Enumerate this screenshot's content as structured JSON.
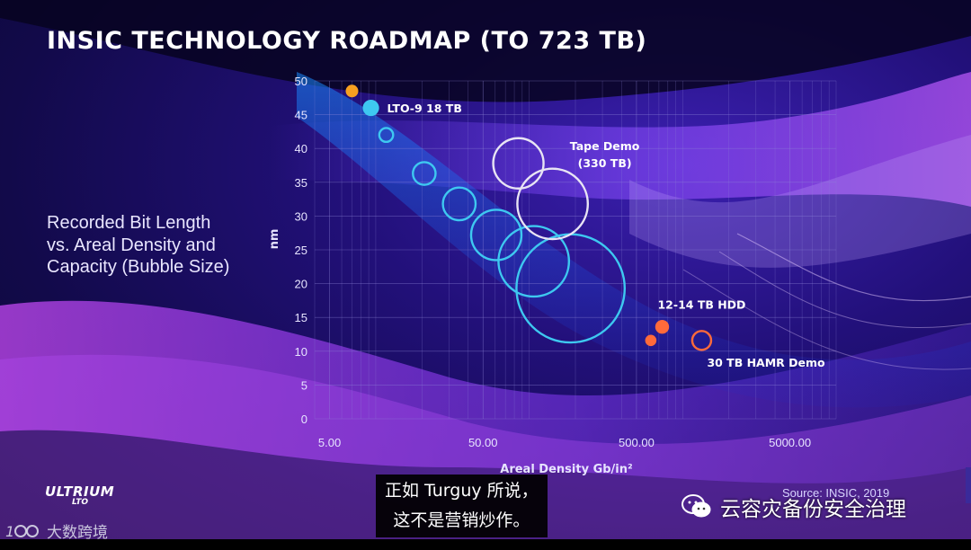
{
  "title": "INSIC TECHNOLOGY ROADMAP (TO 723 TB)",
  "subtitle_lines": [
    "Recorded Bit Length",
    "vs. Areal Density and",
    "Capacity (Bubble Size)"
  ],
  "source": "Source: INSIC, 2019",
  "logo": {
    "top": "ULTRIUM",
    "bottom": "LTO"
  },
  "caption": {
    "line1": "正如 Turguy 所说，",
    "line2": "这不是营销炒作。"
  },
  "wechat": {
    "icon": "wechat-icon",
    "name": "云容灾备份安全治理"
  },
  "watermark": {
    "icon": "100-logo-icon",
    "text": "大数跨境"
  },
  "colors": {
    "lto_bubble": "#3ec8f0",
    "tape_demo": "#e8e4f4",
    "hdd": "#ff6a3a",
    "first_point": "#f7a020",
    "text": "#ffffff"
  },
  "chart_data": {
    "type": "scatter",
    "title": "INSIC TECHNOLOGY ROADMAP (TO 723 TB)",
    "xlabel": "Areal Density Gb/in²",
    "ylabel": "nm",
    "x_scale": "log",
    "xlim": [
      4,
      10000
    ],
    "ylim": [
      0,
      50
    ],
    "x_ticks": [
      "5.00",
      "50.00",
      "500.00",
      "5000.00"
    ],
    "x_tick_values": [
      5,
      50,
      500,
      5000
    ],
    "y_ticks": [
      "0",
      "5",
      "10",
      "15",
      "20",
      "25",
      "30",
      "35",
      "40",
      "45",
      "50"
    ],
    "y_tick_values": [
      0,
      5,
      10,
      15,
      20,
      25,
      30,
      35,
      40,
      45,
      50
    ],
    "grid": true,
    "series": [
      {
        "name": "LTO",
        "points": [
          {
            "x": 7,
            "y": 48.5,
            "size": 1,
            "style": "filled",
            "color": "#f7a020"
          },
          {
            "x": 9.3,
            "y": 46,
            "size": 1.3,
            "style": "filled",
            "color": "#3ec8f0",
            "label": "LTO-9 18 TB"
          },
          {
            "x": 11.7,
            "y": 42,
            "size": 1.1,
            "style": "ring",
            "color": "#3ec8f0"
          },
          {
            "x": 20.7,
            "y": 36.3,
            "size": 1.8,
            "style": "ring",
            "color": "#3ec8f0"
          },
          {
            "x": 35,
            "y": 31.8,
            "size": 2.6,
            "style": "ring",
            "color": "#3ec8f0"
          },
          {
            "x": 61,
            "y": 27.2,
            "size": 4.0,
            "style": "ring",
            "color": "#3ec8f0"
          },
          {
            "x": 107,
            "y": 23.3,
            "size": 5.6,
            "style": "ring",
            "color": "#3ec8f0"
          },
          {
            "x": 186,
            "y": 19.3,
            "size": 8.6,
            "style": "ring",
            "color": "#3ec8f0"
          }
        ]
      },
      {
        "name": "Tape Demo",
        "points": [
          {
            "x": 85,
            "y": 37.8,
            "size": 4.0,
            "style": "ring",
            "color": "#e8e4f4"
          },
          {
            "x": 142,
            "y": 31.8,
            "size": 5.6,
            "style": "ring",
            "color": "#e8e4f4",
            "label": "Tape Demo\n(330 TB)"
          }
        ]
      },
      {
        "name": "HDD",
        "points": [
          {
            "x": 620,
            "y": 11.6,
            "size": 0.9,
            "style": "filled",
            "color": "#ff6a3a"
          },
          {
            "x": 735,
            "y": 13.6,
            "size": 1.1,
            "style": "filled",
            "color": "#ff6a3a",
            "label": "12-14 TB HDD"
          },
          {
            "x": 1330,
            "y": 11.6,
            "size": 1.5,
            "style": "ring",
            "color": "#ff6a3a",
            "label": "30 TB HAMR Demo"
          }
        ]
      }
    ]
  }
}
